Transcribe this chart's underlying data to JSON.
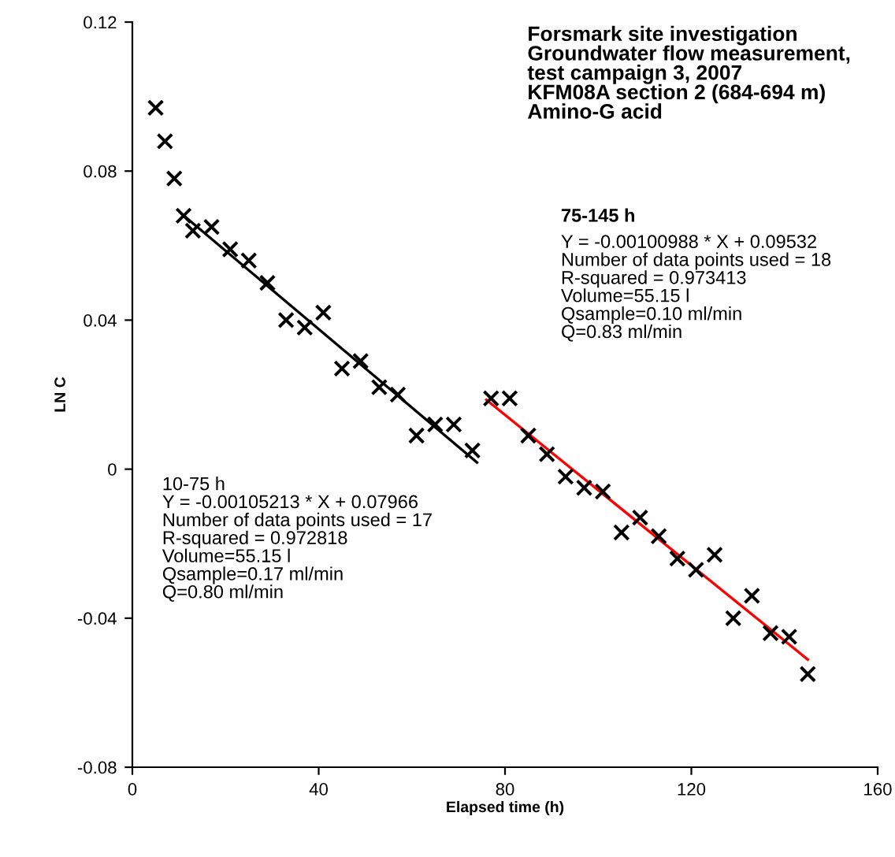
{
  "chart_data": {
    "type": "scatter",
    "title": "Forsmark site investigation\nGroundwater flow measurement,\ntest campaign 3, 2007\nKFM08A section 2 (684-694 m)\nAmino-G acid",
    "xlabel": "Elapsed time (h)",
    "ylabel": "LN C",
    "xlim": [
      0,
      160
    ],
    "xticks": [
      0,
      40,
      80,
      120,
      160
    ],
    "ylim": [
      -0.08,
      0.12
    ],
    "yticks": [
      -0.08,
      -0.04,
      0,
      0.04,
      0.08,
      0.12
    ],
    "grid": false,
    "legend": false,
    "series": [
      {
        "marker": "cross",
        "color": "#000000",
        "x": [
          5,
          7,
          9,
          11,
          13,
          17,
          21,
          25,
          29,
          33,
          37,
          41,
          45,
          49,
          53,
          57,
          61,
          65,
          69,
          73,
          77,
          81,
          85,
          89,
          93,
          97,
          101,
          105,
          109,
          113,
          117,
          121,
          125,
          129,
          133,
          137,
          141,
          145
        ],
        "values": [
          0.097,
          0.088,
          0.078,
          0.068,
          0.064,
          0.065,
          0.059,
          0.056,
          0.05,
          0.04,
          0.038,
          0.042,
          0.027,
          0.029,
          0.022,
          0.02,
          0.009,
          0.012,
          0.012,
          0.005,
          0.019,
          0.019,
          0.009,
          0.004,
          -0.002,
          -0.005,
          -0.006,
          -0.017,
          -0.013,
          -0.018,
          -0.024,
          -0.027,
          -0.023,
          -0.04,
          -0.034,
          -0.044,
          -0.045,
          -0.055
        ]
      },
      {
        "type": "line",
        "marker": "none",
        "color": "#000000",
        "x": [
          11,
          74
        ],
        "values": [
          0.0681,
          0.0018
        ]
      },
      {
        "type": "line",
        "marker": "none",
        "color": "#ff0000",
        "x": [
          76,
          145
        ],
        "values": [
          0.0186,
          -0.0511
        ]
      }
    ],
    "annotations": [
      "75-145 h",
      "Y = -0.00100988 * X + 0.09532\nNumber of data points used = 18\nR-squared = 0.973413\nVolume=55.15 l\nQsample=0.10 ml/min\nQ=0.83 ml/min",
      "10-75 h\nY = -0.00105213 * X + 0.07966\nNumber of data points used = 17\nR-squared = 0.972818\nVolume=55.15 l\nQsample=0.17 ml/min\nQ=0.80 ml/min"
    ]
  }
}
